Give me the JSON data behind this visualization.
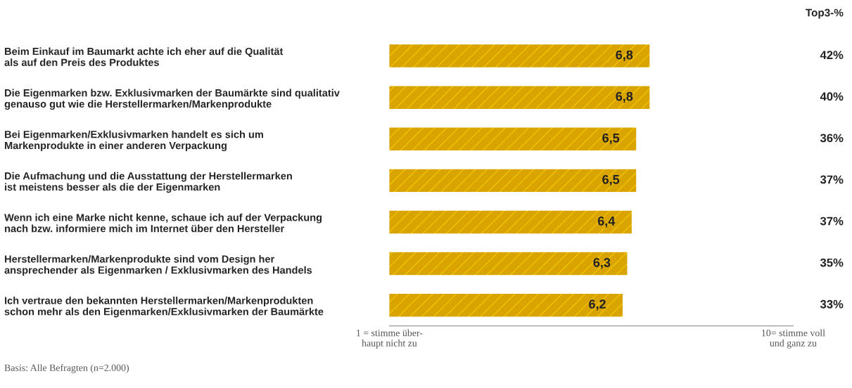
{
  "chart_data": {
    "type": "bar",
    "orientation": "horizontal",
    "categories": [
      "Beim Einkauf im Baumarkt achte ich eher auf die Qualität\nals auf den Preis des Produktes",
      "Die Eigenmarken bzw. Exklusivmarken der Baumärkte sind qualitativ\ngenauso gut wie die Herstellermarken/Markenprodukte",
      "Bei Eigenmarken/Exklusivmarken handelt es sich um\nMarkenprodukte in einer anderen Verpackung",
      "Die Aufmachung und die Ausstattung der Herstellermarken\nist meistens besser als die der Eigenmarken",
      "Wenn ich eine Marke nicht kenne, schaue ich auf der Verpackung\nnach bzw. informiere mich im Internet über den Hersteller",
      "Herstellermarken/Markenprodukte sind vom Design her\nansprechender als Eigenmarken / Exklusivmarken des Handels",
      "Ich vertraue den bekannten Herstellermarken/Markenprodukten\nschon mehr als den Eigenmarken/Exklusivmarken der Baumärkte"
    ],
    "values": [
      6.8,
      6.8,
      6.5,
      6.5,
      6.4,
      6.3,
      6.2
    ],
    "value_labels": [
      "6,8",
      "6,8",
      "6,5",
      "6,5",
      "6,4",
      "6,3",
      "6,2"
    ],
    "color": "#d9a300",
    "xlim": [
      1,
      10
    ],
    "xticks": [
      {
        "value": 1,
        "label": "1 = stimme über-\nhaupt nicht zu"
      },
      {
        "value": 10,
        "label": "10= stimme voll\nund ganz zu"
      }
    ],
    "grid": false,
    "legend": false,
    "annotations": [
      "Top3-%",
      "42%",
      "40%",
      "36%",
      "37%",
      "37%",
      "35%",
      "33%",
      "Basis: Alle Befragten (n=2.000)"
    ]
  }
}
